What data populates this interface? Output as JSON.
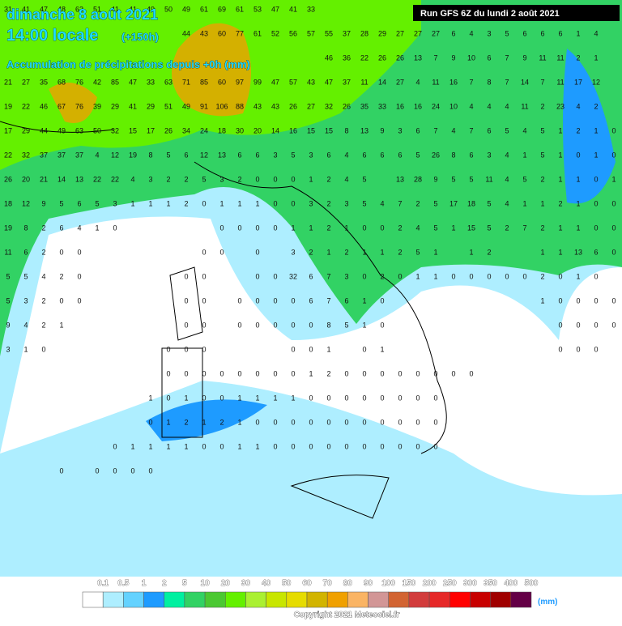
{
  "header": {
    "title": "dimanche 8 août 2021",
    "time": "14:00 locale",
    "lead": "(+150h)",
    "subtitle": "Accumulation de précipitations depuis +0h (mm)",
    "run": "Run GFS 6Z du lundi 2 août 2021"
  },
  "grid": [
    [
      31,
      41,
      47,
      48,
      63,
      51,
      41,
      41,
      49,
      50,
      49,
      61,
      69,
      61,
      53,
      47,
      41,
      33
    ],
    [
      null,
      null,
      null,
      null,
      null,
      null,
      null,
      null,
      null,
      null,
      44,
      43,
      60,
      77,
      61,
      52,
      56,
      57,
      55,
      37,
      28,
      29,
      27,
      27,
      27,
      6,
      4,
      3,
      5,
      6,
      6,
      6,
      1,
      4
    ],
    [
      null,
      null,
      null,
      null,
      null,
      null,
      null,
      null,
      null,
      null,
      null,
      null,
      null,
      null,
      null,
      null,
      null,
      null,
      46,
      36,
      22,
      26,
      26,
      13,
      7,
      9,
      10,
      6,
      7,
      9,
      11,
      11,
      2,
      1
    ],
    [
      21,
      27,
      35,
      68,
      76,
      42,
      85,
      47,
      33,
      63,
      71,
      85,
      60,
      97,
      99,
      47,
      57,
      43,
      47,
      37,
      11,
      14,
      27,
      4,
      11,
      16,
      7,
      8,
      7,
      14,
      7,
      11,
      17,
      12
    ],
    [
      19,
      22,
      46,
      67,
      76,
      39,
      29,
      41,
      29,
      51,
      49,
      91,
      106,
      88,
      43,
      43,
      26,
      27,
      32,
      26,
      35,
      33,
      16,
      16,
      24,
      10,
      4,
      4,
      4,
      11,
      2,
      23,
      4,
      2
    ],
    [
      17,
      29,
      44,
      49,
      63,
      50,
      32,
      15,
      17,
      26,
      34,
      24,
      18,
      30,
      20,
      14,
      16,
      15,
      15,
      8,
      13,
      9,
      3,
      6,
      7,
      4,
      7,
      6,
      5,
      4,
      5,
      1,
      2,
      1,
      0
    ],
    [
      22,
      32,
      37,
      37,
      37,
      4,
      12,
      19,
      8,
      5,
      6,
      12,
      13,
      6,
      6,
      3,
      5,
      3,
      6,
      4,
      6,
      6,
      6,
      5,
      26,
      8,
      6,
      3,
      4,
      1,
      5,
      1,
      0,
      1,
      0
    ],
    [
      26,
      20,
      21,
      14,
      13,
      22,
      22,
      4,
      3,
      2,
      2,
      5,
      3,
      2,
      0,
      0,
      0,
      1,
      2,
      4,
      5,
      null,
      13,
      28,
      9,
      5,
      5,
      11,
      4,
      5,
      2,
      1,
      1,
      0,
      1
    ],
    [
      18,
      12,
      9,
      5,
      6,
      5,
      3,
      1,
      1,
      1,
      2,
      0,
      1,
      1,
      1,
      0,
      0,
      3,
      2,
      3,
      5,
      4,
      7,
      2,
      5,
      17,
      18,
      5,
      4,
      1,
      1,
      2,
      1,
      0,
      0
    ],
    [
      19,
      8,
      2,
      6,
      4,
      1,
      0,
      null,
      null,
      null,
      null,
      null,
      0,
      0,
      0,
      0,
      1,
      1,
      2,
      1,
      0,
      0,
      2,
      4,
      5,
      1,
      15,
      5,
      2,
      7,
      2,
      1,
      1,
      0,
      0
    ],
    [
      11,
      6,
      2,
      0,
      0,
      null,
      null,
      null,
      null,
      null,
      null,
      0,
      0,
      null,
      0,
      null,
      3,
      2,
      1,
      2,
      1,
      1,
      2,
      5,
      1,
      null,
      1,
      2,
      null,
      null,
      1,
      1,
      13,
      6,
      0
    ],
    [
      5,
      5,
      4,
      2,
      0,
      null,
      null,
      null,
      null,
      null,
      0,
      0,
      null,
      null,
      0,
      0,
      32,
      6,
      7,
      3,
      0,
      2,
      0,
      1,
      1,
      0,
      0,
      0,
      0,
      0,
      2,
      0,
      1,
      0
    ],
    [
      5,
      3,
      2,
      0,
      0,
      null,
      null,
      null,
      null,
      null,
      0,
      0,
      null,
      0,
      0,
      0,
      0,
      6,
      7,
      6,
      1,
      0,
      null,
      null,
      null,
      null,
      null,
      null,
      null,
      null,
      1,
      0,
      0,
      0,
      0
    ],
    [
      9,
      4,
      2,
      1,
      null,
      null,
      null,
      null,
      null,
      null,
      0,
      0,
      null,
      0,
      0,
      0,
      0,
      0,
      8,
      5,
      1,
      0,
      null,
      null,
      null,
      null,
      null,
      null,
      null,
      null,
      null,
      0,
      0,
      0,
      0
    ],
    [
      3,
      1,
      0,
      null,
      null,
      null,
      null,
      null,
      null,
      0,
      0,
      0,
      null,
      null,
      null,
      null,
      0,
      0,
      1,
      null,
      0,
      1,
      null,
      null,
      null,
      null,
      null,
      null,
      null,
      null,
      null,
      0,
      0,
      0
    ],
    [
      null,
      null,
      null,
      null,
      null,
      null,
      null,
      null,
      null,
      0,
      0,
      0,
      0,
      0,
      0,
      0,
      0,
      1,
      2,
      0,
      0,
      0,
      0,
      0,
      0,
      0,
      0
    ],
    [
      null,
      null,
      null,
      null,
      null,
      null,
      null,
      null,
      1,
      0,
      1,
      0,
      0,
      1,
      1,
      1,
      1,
      0,
      0,
      0,
      0,
      0,
      0,
      0,
      0
    ],
    [
      null,
      null,
      null,
      null,
      null,
      null,
      null,
      null,
      0,
      1,
      2,
      1,
      2,
      1,
      0,
      0,
      0,
      0,
      0,
      0,
      0,
      0,
      0,
      0,
      0
    ],
    [
      null,
      null,
      null,
      null,
      null,
      null,
      0,
      1,
      1,
      1,
      1,
      0,
      0,
      1,
      1,
      0,
      0,
      0,
      0,
      0,
      0,
      0,
      0,
      0,
      0
    ],
    [
      null,
      null,
      null,
      0,
      null,
      0,
      0,
      0,
      0
    ]
  ],
  "legend": {
    "labels": [
      "0.1",
      "0.5",
      "1",
      "2",
      "5",
      "10",
      "20",
      "30",
      "40",
      "50",
      "60",
      "70",
      "80",
      "90",
      "100",
      "150",
      "200",
      "250",
      "300",
      "350",
      "400",
      "500"
    ],
    "colors": [
      "#ffffff",
      "#aeeeff",
      "#64d2ff",
      "#1e9bff",
      "#00f0a0",
      "#32d264",
      "#4bc832",
      "#64f000",
      "#aaf032",
      "#c8e600",
      "#e6dc00",
      "#d2b400",
      "#f0a000",
      "#fab464",
      "#d29696",
      "#d26432",
      "#d23c3c",
      "#e62828",
      "#ff0000",
      "#c80000",
      "#a00000",
      "#640046",
      "#a050ff"
    ],
    "unit": "(mm)"
  },
  "copyright": "Copyright 2021 Meteociel.fr"
}
